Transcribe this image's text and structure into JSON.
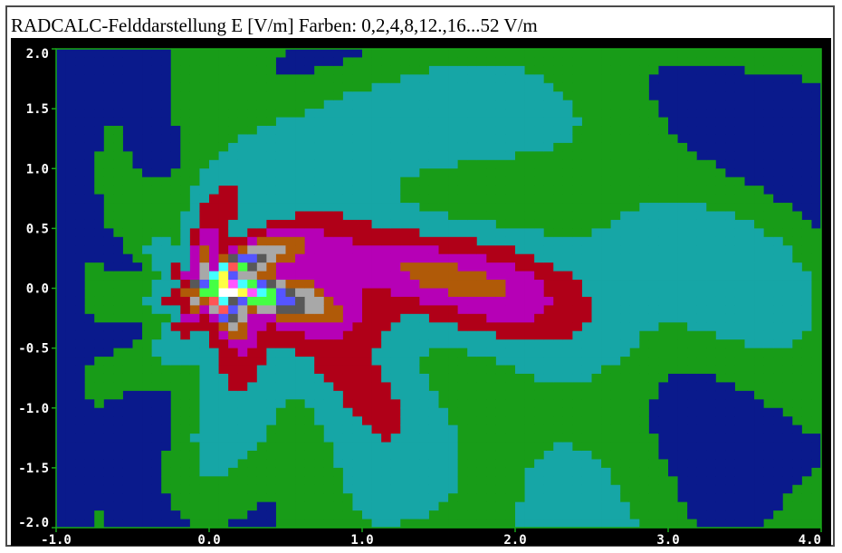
{
  "title": "RADCALC-Felddarstellung E [V/m] Farben: 0,2,4,8,12.,16...52 V/m",
  "chart_data": {
    "type": "heatmap",
    "title": "RADCALC-Felddarstellung E [V/m] Farben: 0,2,4,8,12.,16...52 V/m",
    "xlabel": "",
    "ylabel": "",
    "xlim": [
      -1.0,
      4.0
    ],
    "ylim": [
      -2.0,
      2.0
    ],
    "x_ticks": [
      "-1.0",
      "0.0",
      "1.0",
      "2.0",
      "3.0",
      "4.0"
    ],
    "y_ticks": [
      "2.0",
      "1.5",
      "1.0",
      "0.5",
      "0.0",
      "-0.5",
      "-1.0",
      "-1.5",
      "-2.0"
    ],
    "levels_v_per_m": [
      0,
      2,
      4,
      8,
      12,
      16,
      20,
      24,
      28,
      32,
      36,
      40,
      44,
      48,
      52
    ],
    "level_colors": [
      "#0a1a8c",
      "#189c18",
      "#16a6a6",
      "#b00018",
      "#b600b6",
      "#b05a08",
      "#a8a8a8",
      "#585858",
      "#5555ff",
      "#44ff44",
      "#44ffff",
      "#ff5555",
      "#ff55ff",
      "#ffff44",
      "#ffffff"
    ],
    "colors": {
      "plot_background": "#000000",
      "axis": "#18a818",
      "tick_text": "#ffffff"
    }
  }
}
